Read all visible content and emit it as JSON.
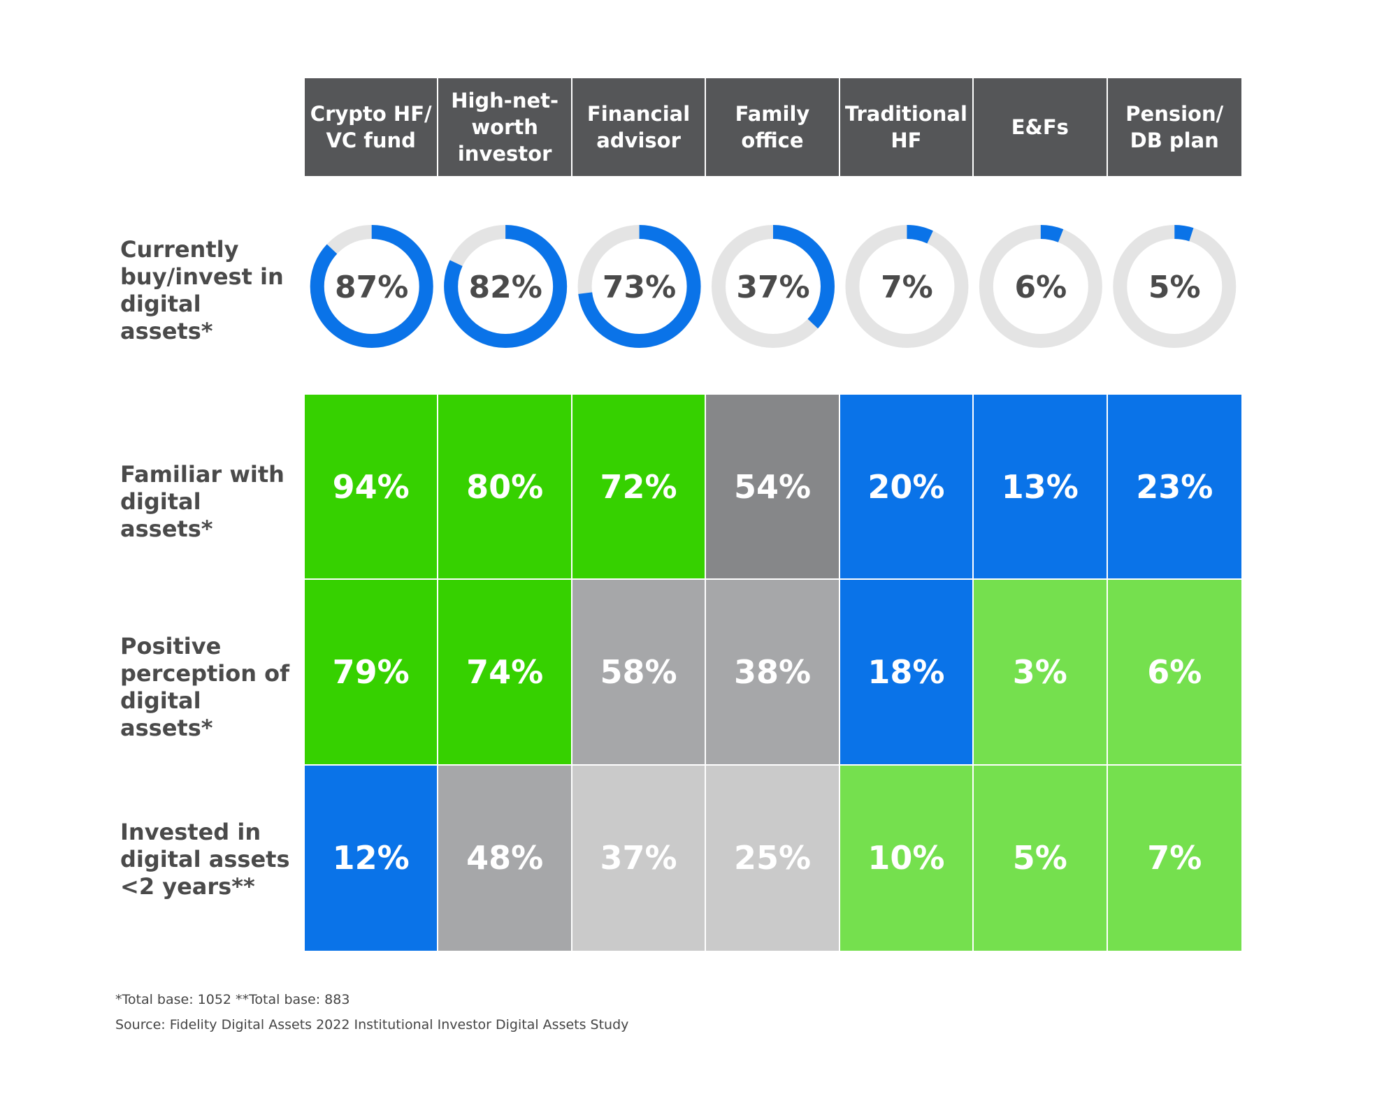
{
  "chart_data": {
    "type": "table",
    "columns": [
      "Crypto HF/\nVC fund",
      "High-net-\nworth\ninvestor",
      "Financial\nadvisor",
      "Family\noffice",
      "Traditional\nHF",
      "E&Fs",
      "Pension/\nDB plan"
    ],
    "rows": [
      {
        "label": "Currently\nbuy/invest in\ndigital assets*",
        "display": "donut",
        "values": [
          87,
          82,
          73,
          37,
          7,
          6,
          5
        ],
        "labels": [
          "87%",
          "82%",
          "73%",
          "37%",
          "7%",
          "6%",
          "5%"
        ]
      },
      {
        "label": "Familiar with\ndigital assets*",
        "display": "heatmap",
        "values": [
          94,
          80,
          72,
          54,
          20,
          13,
          23
        ],
        "labels": [
          "94%",
          "80%",
          "72%",
          "54%",
          "20%",
          "13%",
          "23%"
        ],
        "colors": [
          "#36d100",
          "#36d100",
          "#36d100",
          "#868789",
          "#0a73e8",
          "#0a73e8",
          "#0a73e8"
        ]
      },
      {
        "label": "Positive\nperception of\ndigital assets*",
        "display": "heatmap",
        "values": [
          79,
          74,
          58,
          38,
          18,
          3,
          6
        ],
        "labels": [
          "79%",
          "74%",
          "58%",
          "38%",
          "18%",
          "3%",
          "6%"
        ],
        "colors": [
          "#36d100",
          "#36d100",
          "#a6a7a9",
          "#a6a7a9",
          "#0a73e8",
          "#75e04e",
          "#75e04e"
        ]
      },
      {
        "label": "Invested in\ndigital assets\n<2 years**",
        "display": "heatmap",
        "values": [
          12,
          48,
          37,
          25,
          10,
          5,
          7
        ],
        "labels": [
          "12%",
          "48%",
          "37%",
          "25%",
          "10%",
          "5%",
          "7%"
        ],
        "colors": [
          "#0a73e8",
          "#a6a7a9",
          "#cacaca",
          "#cacaca",
          "#75e04e",
          "#75e04e",
          "#75e04e"
        ]
      }
    ],
    "donut_colors": {
      "fill": "#0a73e8",
      "track": "#e4e4e4"
    }
  },
  "footnotes": {
    "base": "*Total base: 1052   **Total base: 883",
    "source": "Source: Fidelity Digital Assets 2022 Institutional Investor Digital Assets Study"
  }
}
